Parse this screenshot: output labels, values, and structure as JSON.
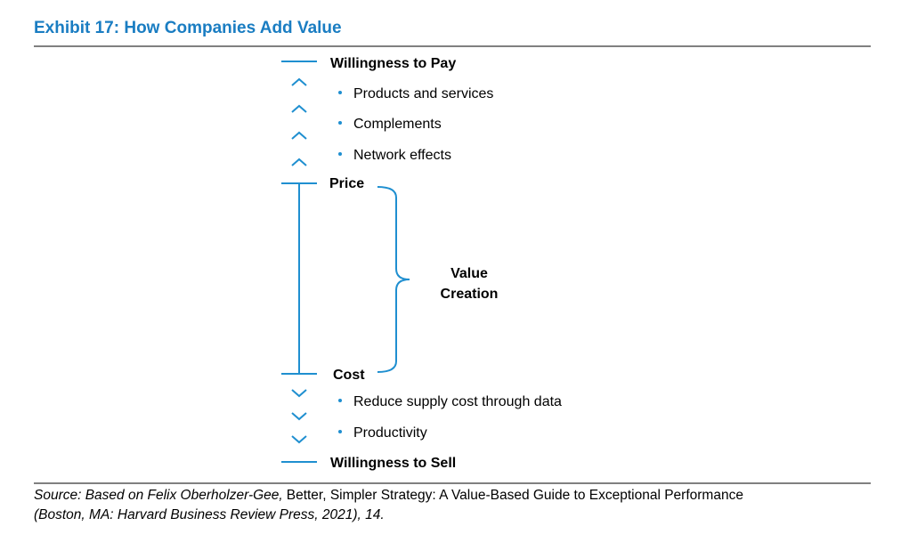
{
  "title": "Exhibit 17: How Companies Add Value",
  "levels": {
    "willingness_to_pay": "Willingness to Pay",
    "price": "Price",
    "cost": "Cost",
    "willingness_to_sell": "Willingness to Sell"
  },
  "wtp_drivers": [
    "Products and services",
    "Complements",
    "Network effects"
  ],
  "cost_drivers": [
    "Reduce supply cost through data",
    "Productivity"
  ],
  "bracket_label": [
    "Value",
    "Creation"
  ],
  "source": [
    "Source: Based on Felix Oberholzer-Gee,",
    "Better, Simpler Strategy: A Value-Based Guide to Exceptional Performance",
    "(Boston, MA: Harvard Business Review Press, 2021), 14."
  ]
}
